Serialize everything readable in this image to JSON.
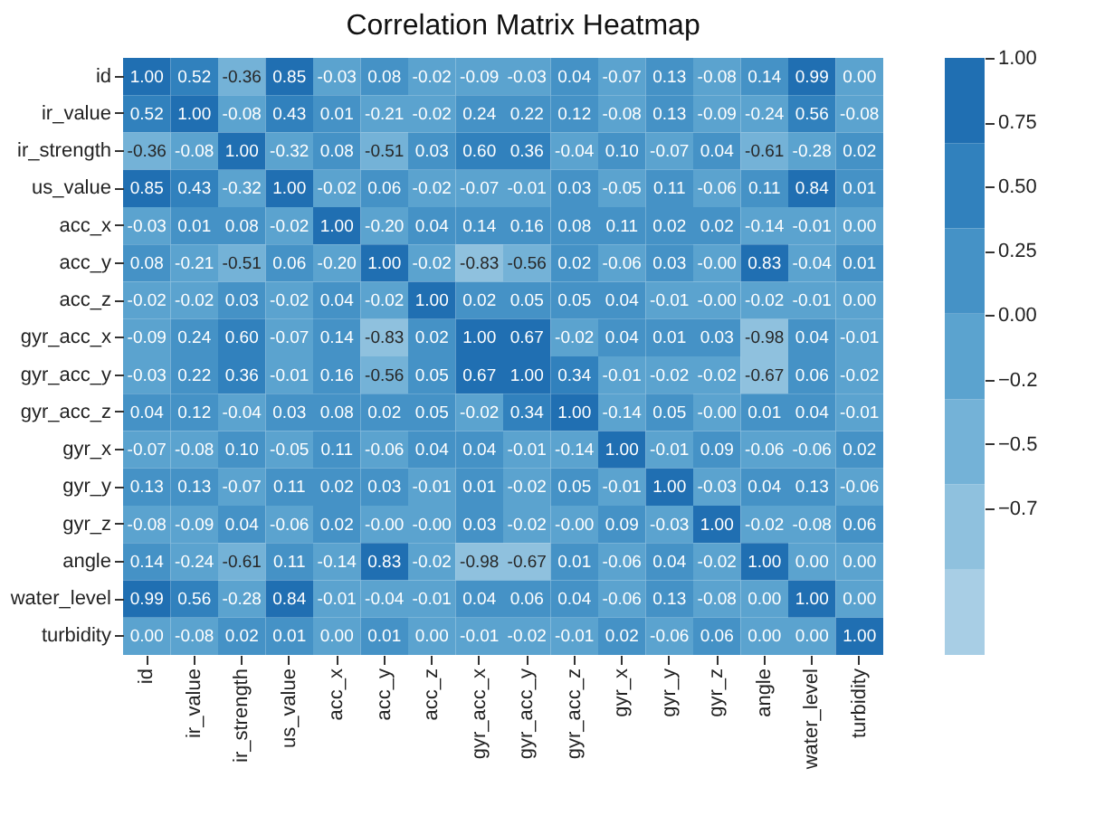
{
  "chart_data": {
    "type": "heatmap",
    "title": "Correlation Matrix Heatmap",
    "categories": [
      "id",
      "ir_value",
      "ir_strength",
      "us_value",
      "acc_x",
      "acc_y",
      "acc_z",
      "gyr_acc_x",
      "gyr_acc_y",
      "gyr_acc_z",
      "gyr_x",
      "gyr_y",
      "gyr_z",
      "angle",
      "water_level",
      "turbidity"
    ],
    "y_categories": [
      "id",
      "ir_value",
      "ir_strength",
      "us_value",
      "acc_x",
      "acc_y",
      "acc_z",
      "gyr_acc_x",
      "gyr_acc_y",
      "gyr_acc_z",
      "gyr_x",
      "gyr_y",
      "gyr_z",
      "angle",
      "water_level",
      "turbidity"
    ],
    "cells": [
      [
        1.0,
        0.52,
        -0.36,
        0.85,
        -0.03,
        0.08,
        -0.02,
        -0.09,
        -0.03,
        0.04,
        -0.07,
        0.13,
        -0.08,
        0.14,
        0.99,
        0.0
      ],
      [
        0.52,
        1.0,
        -0.08,
        0.43,
        0.01,
        -0.21,
        -0.02,
        0.24,
        0.22,
        0.12,
        -0.08,
        0.13,
        -0.09,
        -0.24,
        0.56,
        -0.08
      ],
      [
        -0.36,
        -0.08,
        1.0,
        -0.32,
        0.08,
        -0.51,
        0.03,
        0.6,
        0.36,
        -0.04,
        0.1,
        -0.07,
        0.04,
        -0.61,
        -0.28,
        0.02
      ],
      [
        0.85,
        0.43,
        -0.32,
        1.0,
        -0.02,
        0.06,
        -0.02,
        -0.07,
        -0.01,
        0.03,
        -0.05,
        0.11,
        -0.06,
        0.11,
        0.84,
        0.01
      ],
      [
        -0.03,
        0.01,
        0.08,
        -0.02,
        1.0,
        -0.2,
        0.04,
        0.14,
        0.16,
        0.08,
        0.11,
        0.02,
        0.02,
        -0.14,
        -0.01,
        0.0
      ],
      [
        0.08,
        -0.21,
        -0.51,
        0.06,
        -0.2,
        1.0,
        -0.02,
        -0.83,
        -0.56,
        0.02,
        -0.06,
        0.03,
        -0.0,
        0.83,
        -0.04,
        0.01
      ],
      [
        -0.02,
        -0.02,
        0.03,
        -0.02,
        0.04,
        -0.02,
        1.0,
        0.02,
        0.05,
        0.05,
        0.04,
        -0.01,
        -0.0,
        -0.02,
        -0.01,
        0.0
      ],
      [
        -0.09,
        0.24,
        0.6,
        -0.07,
        0.14,
        -0.83,
        0.02,
        1.0,
        0.67,
        -0.02,
        0.04,
        0.01,
        0.03,
        -0.98,
        0.04,
        -0.01
      ],
      [
        -0.03,
        0.22,
        0.36,
        -0.01,
        0.16,
        -0.56,
        0.05,
        0.67,
        1.0,
        0.34,
        -0.01,
        -0.02,
        -0.02,
        -0.67,
        0.06,
        -0.02
      ],
      [
        0.04,
        0.12,
        -0.04,
        0.03,
        0.08,
        0.02,
        0.05,
        -0.02,
        0.34,
        1.0,
        -0.14,
        0.05,
        -0.0,
        0.01,
        0.04,
        -0.01
      ],
      [
        -0.07,
        -0.08,
        0.1,
        -0.05,
        0.11,
        -0.06,
        0.04,
        0.04,
        -0.01,
        -0.14,
        1.0,
        -0.01,
        0.09,
        -0.06,
        -0.06,
        0.02
      ],
      [
        0.13,
        0.13,
        -0.07,
        0.11,
        0.02,
        0.03,
        -0.01,
        0.01,
        -0.02,
        0.05,
        -0.01,
        1.0,
        -0.03,
        0.04,
        0.13,
        -0.06
      ],
      [
        -0.08,
        -0.09,
        0.04,
        -0.06,
        0.02,
        -0.0,
        -0.0,
        0.03,
        -0.02,
        -0.0,
        0.09,
        -0.03,
        1.0,
        -0.02,
        -0.08,
        0.06
      ],
      [
        0.14,
        -0.24,
        -0.61,
        0.11,
        -0.14,
        0.83,
        -0.02,
        -0.98,
        -0.67,
        0.01,
        -0.06,
        0.04,
        -0.02,
        1.0,
        0.0,
        0.0
      ],
      [
        0.99,
        0.56,
        -0.28,
        0.84,
        -0.01,
        -0.04,
        -0.01,
        0.04,
        0.06,
        0.04,
        -0.06,
        0.13,
        -0.08,
        0.0,
        1.0,
        0.0
      ],
      [
        0.0,
        -0.08,
        0.02,
        0.01,
        0.0,
        0.01,
        0.0,
        -0.01,
        -0.02,
        -0.01,
        0.02,
        -0.06,
        0.06,
        0.0,
        0.0,
        1.0
      ]
    ],
    "cell_labels": [
      [
        "1.00",
        "0.52",
        "-0.36",
        "0.85",
        "-0.03",
        "0.08",
        "-0.02",
        "-0.09",
        "-0.03",
        "0.04",
        "-0.07",
        "0.13",
        "-0.08",
        "0.14",
        "0.99",
        "0.00"
      ],
      [
        "0.52",
        "1.00",
        "-0.08",
        "0.43",
        "0.01",
        "-0.21",
        "-0.02",
        "0.24",
        "0.22",
        "0.12",
        "-0.08",
        "0.13",
        "-0.09",
        "-0.24",
        "0.56",
        "-0.08"
      ],
      [
        "-0.36",
        "-0.08",
        "1.00",
        "-0.32",
        "0.08",
        "-0.51",
        "0.03",
        "0.60",
        "0.36",
        "-0.04",
        "0.10",
        "-0.07",
        "0.04",
        "-0.61",
        "-0.28",
        "0.02"
      ],
      [
        "0.85",
        "0.43",
        "-0.32",
        "1.00",
        "-0.02",
        "0.06",
        "-0.02",
        "-0.07",
        "-0.01",
        "0.03",
        "-0.05",
        "0.11",
        "-0.06",
        "0.11",
        "0.84",
        "0.01"
      ],
      [
        "-0.03",
        "0.01",
        "0.08",
        "-0.02",
        "1.00",
        "-0.20",
        "0.04",
        "0.14",
        "0.16",
        "0.08",
        "0.11",
        "0.02",
        "0.02",
        "-0.14",
        "-0.01",
        "0.00"
      ],
      [
        "0.08",
        "-0.21",
        "-0.51",
        "0.06",
        "-0.20",
        "1.00",
        "-0.02",
        "-0.83",
        "-0.56",
        "0.02",
        "-0.06",
        "0.03",
        "-0.00",
        "0.83",
        "-0.04",
        "0.01"
      ],
      [
        "-0.02",
        "-0.02",
        "0.03",
        "-0.02",
        "0.04",
        "-0.02",
        "1.00",
        "0.02",
        "0.05",
        "0.05",
        "0.04",
        "-0.01",
        "-0.00",
        "-0.02",
        "-0.01",
        "0.00"
      ],
      [
        "-0.09",
        "0.24",
        "0.60",
        "-0.07",
        "0.14",
        "-0.83",
        "0.02",
        "1.00",
        "0.67",
        "-0.02",
        "0.04",
        "0.01",
        "0.03",
        "-0.98",
        "0.04",
        "-0.01"
      ],
      [
        "-0.03",
        "0.22",
        "0.36",
        "-0.01",
        "0.16",
        "-0.56",
        "0.05",
        "0.67",
        "1.00",
        "0.34",
        "-0.01",
        "-0.02",
        "-0.02",
        "-0.67",
        "0.06",
        "-0.02"
      ],
      [
        "0.04",
        "0.12",
        "-0.04",
        "0.03",
        "0.08",
        "0.02",
        "0.05",
        "-0.02",
        "0.34",
        "1.00",
        "-0.14",
        "0.05",
        "-0.00",
        "0.01",
        "0.04",
        "-0.01"
      ],
      [
        "-0.07",
        "-0.08",
        "0.10",
        "-0.05",
        "0.11",
        "-0.06",
        "0.04",
        "0.04",
        "-0.01",
        "-0.14",
        "1.00",
        "-0.01",
        "0.09",
        "-0.06",
        "-0.06",
        "0.02"
      ],
      [
        "0.13",
        "0.13",
        "-0.07",
        "0.11",
        "0.02",
        "0.03",
        "-0.01",
        "0.01",
        "-0.02",
        "0.05",
        "-0.01",
        "1.00",
        "-0.03",
        "0.04",
        "0.13",
        "-0.06"
      ],
      [
        "-0.08",
        "-0.09",
        "0.04",
        "-0.06",
        "0.02",
        "-0.00",
        "-0.00",
        "0.03",
        "-0.02",
        "-0.00",
        "0.09",
        "-0.03",
        "1.00",
        "-0.02",
        "-0.08",
        "0.06"
      ],
      [
        "0.14",
        "-0.24",
        "-0.61",
        "0.11",
        "-0.14",
        "0.83",
        "-0.02",
        "-0.98",
        "-0.67",
        "0.01",
        "-0.06",
        "0.04",
        "-0.02",
        "1.00",
        "0.00",
        "0.00"
      ],
      [
        "0.99",
        "0.56",
        "-0.28",
        "0.84",
        "-0.01",
        "-0.04",
        "-0.01",
        "0.04",
        "0.06",
        "0.04",
        "-0.06",
        "0.13",
        "-0.08",
        "0.00",
        "1.00",
        "0.00"
      ],
      [
        "0.00",
        "-0.08",
        "0.02",
        "0.01",
        "0.00",
        "0.01",
        "0.00",
        "-0.01",
        "-0.02",
        "-0.01",
        "0.02",
        "-0.06",
        "0.06",
        "0.00",
        "0.00",
        "1.00"
      ]
    ],
    "clim": [
      -1.32,
      1.0
    ],
    "cticks": [
      {
        "value": 1.0,
        "label": "1.00"
      },
      {
        "value": 0.75,
        "label": "0.75"
      },
      {
        "value": 0.5,
        "label": "0.50"
      },
      {
        "value": 0.25,
        "label": "0.25"
      },
      {
        "value": 0,
        "label": "0.00"
      },
      {
        "value": -0.25,
        "label": "−0.2"
      },
      {
        "value": -0.5,
        "label": "−0.5"
      },
      {
        "value": -0.75,
        "label": "−0.7"
      }
    ]
  }
}
